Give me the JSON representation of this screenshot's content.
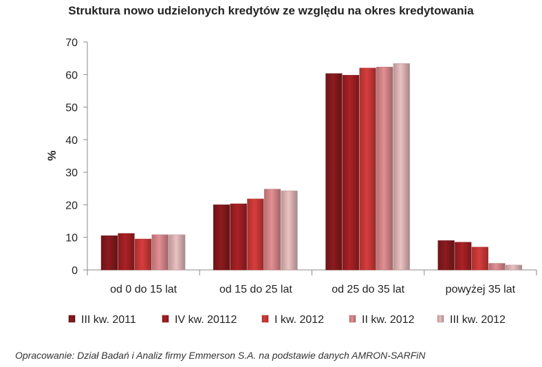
{
  "chart_data": {
    "type": "bar",
    "title": "Struktura nowo udzielonych kredytów ze względu na okres kredytowania",
    "xlabel": "",
    "ylabel": "%",
    "ylim": [
      0,
      70
    ],
    "yticks": [
      0,
      10,
      20,
      30,
      40,
      50,
      60,
      70
    ],
    "grid": false,
    "legend_position": "bottom",
    "categories": [
      "od 0 do 15 lat",
      "od 15 do 25 lat",
      "od 25 do 35 lat",
      "powyżej 35 lat"
    ],
    "series": [
      {
        "name": "III kw. 2011",
        "color": "#8c1b1f",
        "values": [
          10.5,
          20.0,
          60.3,
          9.0
        ]
      },
      {
        "name": "IV kw. 20112",
        "color": "#ab2126",
        "values": [
          11.2,
          20.3,
          59.8,
          8.5
        ]
      },
      {
        "name": "I kw. 2012",
        "color": "#d83d3c",
        "values": [
          9.5,
          21.8,
          62.0,
          7.0
        ]
      },
      {
        "name": "II kw. 2012",
        "color": "#e48f93",
        "values": [
          10.8,
          24.8,
          62.3,
          2.0
        ]
      },
      {
        "name": "III kw. 2012",
        "color": "#ecc1c2",
        "values": [
          10.8,
          24.3,
          63.4,
          1.5
        ]
      }
    ]
  },
  "source_note": "Opracowanie: Dział Badań i Analiz firmy Emmerson S.A. na podstawie danych AMRON-SARFiN"
}
